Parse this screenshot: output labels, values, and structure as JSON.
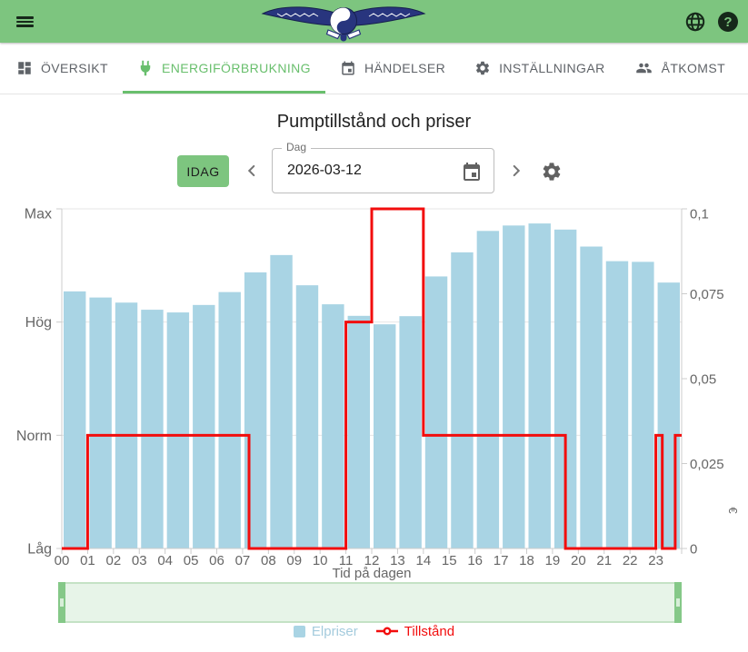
{
  "theme": {
    "header_green": "#7dc57f",
    "active_tab_green": "#69bf6d",
    "header_icon_color": "#16281a",
    "tab_text_gray": "#5f6368",
    "axis_text_gray": "#666666",
    "axis_line_gray": "#cccccc",
    "grid_gray": "#e6e6e6",
    "bar_blue": "#a9d4e4",
    "line_red": "#f20d0d",
    "legend_elpriser_text": "#a4cbdd",
    "slider_fill": "#e7f4e8",
    "slider_border": "#c4e2c5",
    "slider_handle": "#85c888",
    "chevron_gray": "#757575",
    "field_icon_gray": "#616161"
  },
  "header": {
    "menu_icon": "hamburger-icon",
    "logo": "winged-yinyang-bird-logo",
    "right_icons": [
      "globe-icon",
      "help-icon"
    ]
  },
  "tabs": [
    {
      "label": "ÖVERSIKT",
      "icon": "dashboard-icon",
      "active": false
    },
    {
      "label": "ENERGIFÖRBRUKNING",
      "icon": "plug-icon",
      "active": true
    },
    {
      "label": "HÄNDELSER",
      "icon": "calendar-icon",
      "active": false
    },
    {
      "label": "INSTÄLLNINGAR",
      "icon": "gear-icon",
      "active": false
    },
    {
      "label": "ÅTKOMST",
      "icon": "people-icon",
      "active": false
    }
  ],
  "page": {
    "title": "Pumptillstånd och priser"
  },
  "controls": {
    "today_button": "IDAG",
    "date_label": "Dag",
    "date_value": "2026-03-12"
  },
  "chart_data": {
    "type": "bar",
    "subtype": "bar + step-line combo",
    "title": "Pumptillstånd och priser",
    "xlabel": "Tid på dagen",
    "categories": [
      "00",
      "01",
      "02",
      "03",
      "04",
      "05",
      "06",
      "07",
      "08",
      "09",
      "10",
      "11",
      "12",
      "13",
      "14",
      "15",
      "16",
      "17",
      "18",
      "19",
      "20",
      "21",
      "22",
      "23"
    ],
    "left_axis": {
      "type": "state-levels",
      "labels": [
        "Låg",
        "Norm",
        "Hög",
        "Max"
      ]
    },
    "right_axis": {
      "min": 0,
      "max": 0.1,
      "tick_values": [
        0,
        0.025,
        0.05,
        0.075,
        0.1
      ],
      "tick_labels": [
        "0",
        "0,025",
        "0,05",
        "0,075",
        "0,1"
      ],
      "title": "€"
    },
    "grid": true,
    "legend_position": "bottom",
    "series": [
      {
        "name": "Elpriser",
        "type": "bar",
        "axis": "right",
        "color": "#a9d4e4",
        "values": [
          0.0757,
          0.0739,
          0.0724,
          0.0703,
          0.0695,
          0.0717,
          0.0755,
          0.0813,
          0.0864,
          0.0775,
          0.0719,
          0.0685,
          0.066,
          0.0684,
          0.0801,
          0.0872,
          0.0935,
          0.0951,
          0.0957,
          0.0939,
          0.0889,
          0.0846,
          0.0844,
          0.0783
        ]
      },
      {
        "name": "Tillstånd",
        "type": "step-line",
        "axis": "left",
        "color": "#f20d0d",
        "steps": [
          {
            "from": 0,
            "to": 1,
            "level": "Låg"
          },
          {
            "from": 1,
            "to": 7.25,
            "level": "Norm"
          },
          {
            "from": 7.25,
            "to": 11,
            "level": "Låg"
          },
          {
            "from": 11,
            "to": 12,
            "level": "Hög"
          },
          {
            "from": 12,
            "to": 14,
            "level": "Max"
          },
          {
            "from": 14,
            "to": 19.5,
            "level": "Norm"
          },
          {
            "from": 19.5,
            "to": 23,
            "level": "Låg"
          },
          {
            "from": 23,
            "to": 23.25,
            "level": "Norm"
          },
          {
            "from": 23.25,
            "to": 23.75,
            "level": "Låg"
          },
          {
            "from": 23.75,
            "to": 24,
            "level": "Norm"
          }
        ]
      }
    ]
  }
}
